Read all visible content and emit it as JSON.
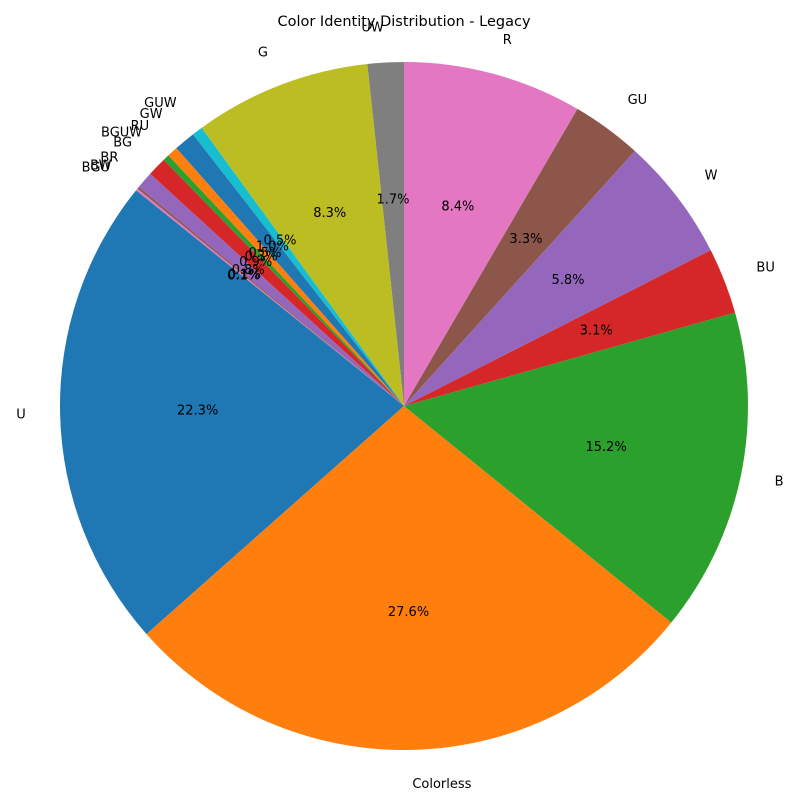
{
  "chart_data": {
    "type": "pie",
    "title": "Color Identity Distribution - Legacy",
    "start_angle_deg": 90,
    "direction": "counterclockwise",
    "slices": [
      {
        "label": "UW",
        "value": 1.7,
        "pct_text": "1.7%",
        "color": "#7f7f7f"
      },
      {
        "label": "G",
        "value": 8.3,
        "pct_text": "8.3%",
        "color": "#bcbd22"
      },
      {
        "label": "GUW",
        "value": 0.5,
        "pct_text": "0.5%",
        "color": "#17becf"
      },
      {
        "label": "GW",
        "value": 1.0,
        "pct_text": "1.0%",
        "color": "#1f77b4"
      },
      {
        "label": "RU",
        "value": 0.5,
        "pct_text": "0.5%",
        "color": "#ff7f0e"
      },
      {
        "label": "BGUW",
        "value": 0.3,
        "pct_text": "0.3%",
        "color": "#2ca02c"
      },
      {
        "label": "BG",
        "value": 0.9,
        "pct_text": "0.9%",
        "color": "#d62728"
      },
      {
        "label": "BR",
        "value": 0.8,
        "pct_text": "0.8%",
        "color": "#9467bd"
      },
      {
        "label": "BW",
        "value": 0.1,
        "pct_text": "0.1%",
        "color": "#8c564b"
      },
      {
        "label": "BGU",
        "value": 0.1,
        "pct_text": "0.1%",
        "color": "#e377c2"
      },
      {
        "label": "U",
        "value": 22.3,
        "pct_text": "22.3%",
        "color": "#1f77b4"
      },
      {
        "label": "Colorless",
        "value": 27.6,
        "pct_text": "27.6%",
        "color": "#ff7f0e"
      },
      {
        "label": "B",
        "value": 15.2,
        "pct_text": "15.2%",
        "color": "#2ca02c"
      },
      {
        "label": "BU",
        "value": 3.1,
        "pct_text": "3.1%",
        "color": "#d62728"
      },
      {
        "label": "W",
        "value": 5.8,
        "pct_text": "5.8%",
        "color": "#9467bd"
      },
      {
        "label": "GU",
        "value": 3.3,
        "pct_text": "3.3%",
        "color": "#8c564b"
      },
      {
        "label": "R",
        "value": 8.4,
        "pct_text": "8.4%",
        "color": "#e377c2"
      }
    ]
  }
}
